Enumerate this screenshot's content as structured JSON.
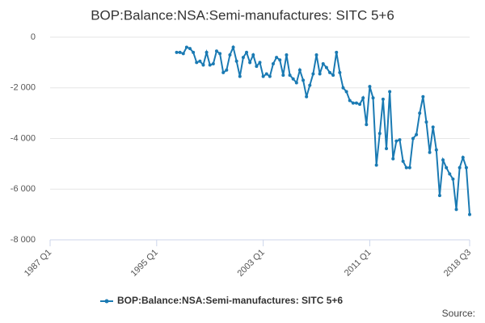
{
  "chart_data": {
    "type": "line",
    "title": "BOP:Balance:NSA:Semi-manufactures: SITC 5+6",
    "source": "Source:",
    "categories": [
      "1987 Q1",
      null,
      null,
      null,
      null,
      null,
      null,
      null,
      null,
      null,
      null,
      null,
      null,
      null,
      null,
      null,
      null,
      null,
      null,
      null,
      null,
      null,
      null,
      null,
      null,
      null,
      null,
      null,
      null,
      null,
      null,
      null,
      "1995 Q1",
      null,
      null,
      null,
      null,
      null,
      null,
      null,
      null,
      null,
      null,
      null,
      null,
      null,
      null,
      null,
      null,
      null,
      null,
      null,
      null,
      null,
      null,
      null,
      null,
      null,
      null,
      null,
      null,
      null,
      null,
      null,
      "2003 Q1",
      null,
      null,
      null,
      null,
      null,
      null,
      null,
      null,
      null,
      null,
      null,
      null,
      null,
      null,
      null,
      null,
      null,
      null,
      null,
      null,
      null,
      null,
      null,
      null,
      null,
      null,
      null,
      null,
      null,
      null,
      null,
      "2011 Q1",
      null,
      null,
      null,
      null,
      null,
      null,
      null,
      null,
      null,
      null,
      null,
      null,
      null,
      null,
      null,
      null,
      null,
      null,
      null,
      null,
      null,
      null,
      null,
      null,
      null,
      null,
      null,
      null,
      null,
      "2018 Q3"
    ],
    "series": [
      {
        "name": "BOP:Balance:NSA:Semi-manufactures: SITC 5+6",
        "color": "#1a7ab3",
        "values": [
          null,
          null,
          null,
          null,
          null,
          null,
          null,
          null,
          null,
          null,
          null,
          null,
          null,
          null,
          null,
          null,
          null,
          null,
          null,
          null,
          null,
          null,
          null,
          null,
          null,
          null,
          null,
          null,
          null,
          null,
          null,
          null,
          null,
          null,
          null,
          null,
          null,
          null,
          -600,
          -600,
          -650,
          -400,
          -450,
          -600,
          -1000,
          -950,
          -1100,
          -600,
          -1100,
          -1050,
          -550,
          -650,
          -1400,
          -1300,
          -700,
          -400,
          -950,
          -1550,
          -800,
          -600,
          -1000,
          -700,
          -1150,
          -1000,
          -1550,
          -1450,
          -1550,
          -1050,
          -800,
          -900,
          -1500,
          -700,
          -1500,
          -1650,
          -1800,
          -1300,
          -1700,
          -2350,
          -1900,
          -1450,
          -700,
          -1450,
          -1050,
          -1200,
          -1400,
          -1500,
          -600,
          -1400,
          -2000,
          -2150,
          -2500,
          -2600,
          -2600,
          -2650,
          -2400,
          -3450,
          -1950,
          -2400,
          -5050,
          -3800,
          -2450,
          -4400,
          -2150,
          -4800,
          -4100,
          -4050,
          -4900,
          -5150,
          -5150,
          -4000,
          -3850,
          -3000,
          -2350,
          -3350,
          -4550,
          -3550,
          -4450,
          -6250,
          -4850,
          -5150,
          -5400,
          -5600,
          -6800,
          -5150,
          -4750,
          -5150,
          -7000
        ]
      }
    ],
    "ylim": [
      -8000,
      0
    ],
    "yticks": [
      0,
      {
        "value": -2000,
        "label": "-2 000"
      },
      {
        "value": -4000,
        "label": "-4 000"
      },
      {
        "value": -6000,
        "label": "-6 000"
      },
      {
        "value": -8000,
        "label": "-8 000"
      }
    ],
    "grid": true
  }
}
